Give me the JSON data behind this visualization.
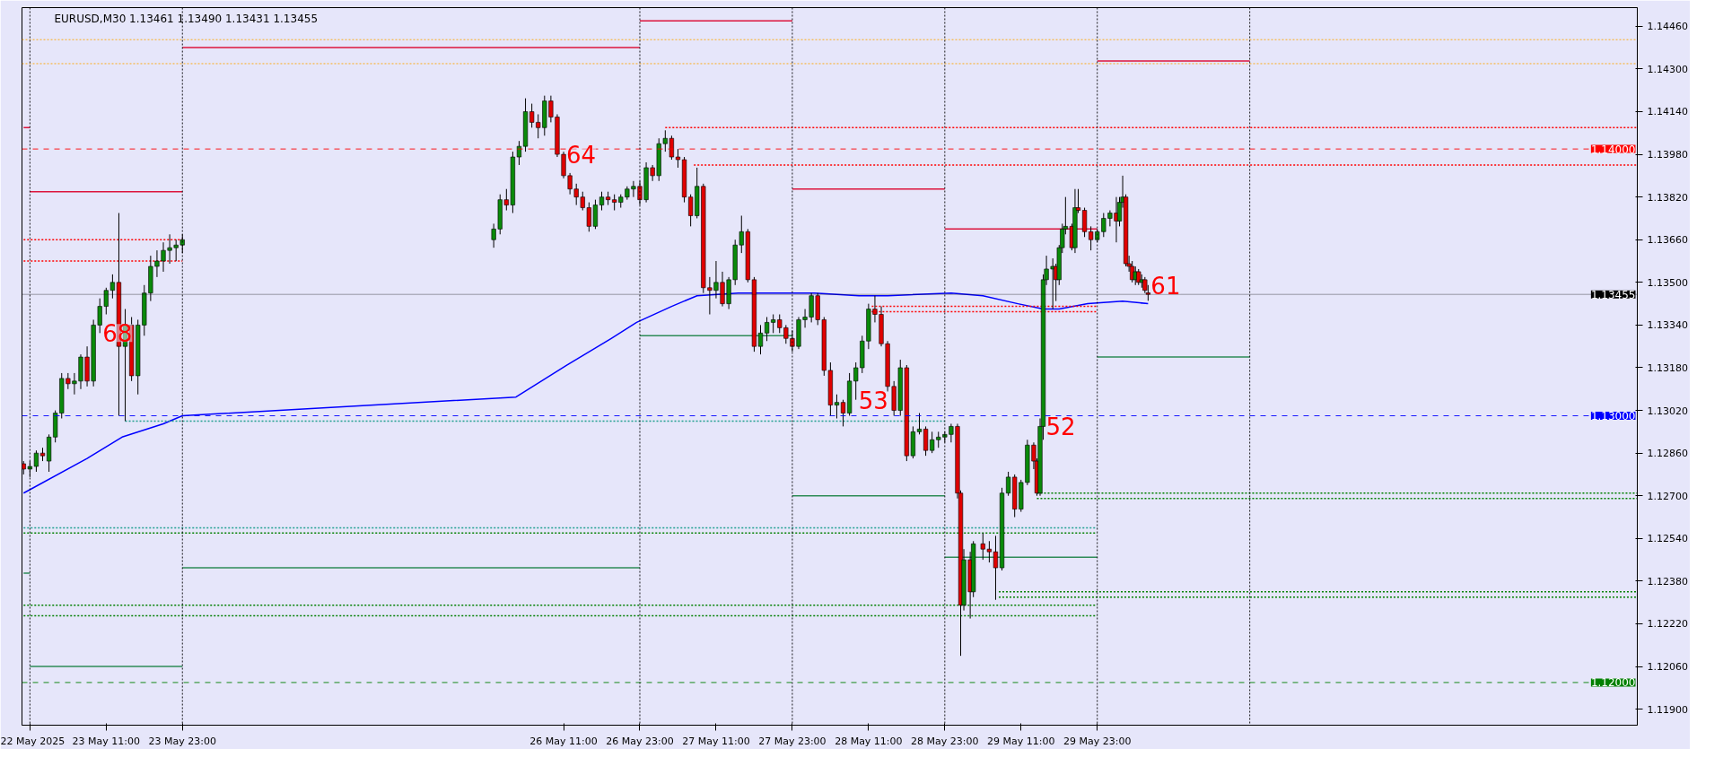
{
  "chart_data": {
    "type": "candlestick",
    "title": "EURUSD,M30  1.13461 1.13490 1.13431 1.13455",
    "xlim": [
      "2025-05-22T21:45",
      "2025-06-02T12:00"
    ],
    "ylim": [
      1.1184,
      1.1453
    ],
    "xticks": [
      {
        "value": "2025-05-22T23:00",
        "label": "22 May 2025"
      },
      {
        "value": "2025-05-23T11:00",
        "label": "23 May 11:00"
      },
      {
        "value": "2025-05-23T23:00",
        "label": "23 May 23:00"
      },
      {
        "value": "2025-05-26T11:00",
        "label": "26 May 11:00"
      },
      {
        "value": "2025-05-26T23:00",
        "label": "26 May 23:00"
      },
      {
        "value": "2025-05-27T11:00",
        "label": "27 May 11:00"
      },
      {
        "value": "2025-05-27T23:00",
        "label": "27 May 23:00"
      },
      {
        "value": "2025-05-28T11:00",
        "label": "28 May 11:00"
      },
      {
        "value": "2025-05-28T23:00",
        "label": "28 May 23:00"
      },
      {
        "value": "2025-05-29T11:00",
        "label": "29 May 11:00"
      },
      {
        "value": "2025-05-29T23:00",
        "label": "29 May 23:00"
      }
    ],
    "yticks": [
      {
        "value": 1.119,
        "label": "1.11900"
      },
      {
        "value": 1.1206,
        "label": "1.12060"
      },
      {
        "value": 1.1222,
        "label": "1.12220"
      },
      {
        "value": 1.1238,
        "label": "1.12380"
      },
      {
        "value": 1.1254,
        "label": "1.12540"
      },
      {
        "value": 1.127,
        "label": "1.12700"
      },
      {
        "value": 1.1286,
        "label": "1.12860"
      },
      {
        "value": 1.1302,
        "label": "1.13020"
      },
      {
        "value": 1.1318,
        "label": "1.13180"
      },
      {
        "value": 1.1334,
        "label": "1.13340"
      },
      {
        "value": 1.135,
        "label": "1.13500"
      },
      {
        "value": 1.1366,
        "label": "1.13660"
      },
      {
        "value": 1.1382,
        "label": "1.13820"
      },
      {
        "value": 1.1398,
        "label": "1.13980"
      },
      {
        "value": 1.1414,
        "label": "1.14140"
      },
      {
        "value": 1.143,
        "label": "1.14300"
      },
      {
        "value": 1.1446,
        "label": "1.14460"
      }
    ],
    "x": [
      "2025-05-22T22:00",
      "2025-05-22T23:00",
      "2025-05-23T00:00",
      "2025-05-23T01:00",
      "2025-05-23T02:00",
      "2025-05-23T03:00",
      "2025-05-23T04:00",
      "2025-05-23T05:00",
      "2025-05-23T06:00",
      "2025-05-23T07:00",
      "2025-05-23T08:00",
      "2025-05-23T09:00",
      "2025-05-23T10:00",
      "2025-05-23T11:00",
      "2025-05-23T12:00",
      "2025-05-23T13:00",
      "2025-05-23T14:00",
      "2025-05-23T15:00",
      "2025-05-23T16:00",
      "2025-05-23T17:00",
      "2025-05-23T18:00",
      "2025-05-23T19:00",
      "2025-05-23T20:00",
      "2025-05-23T21:00",
      "2025-05-23T22:00",
      "2025-05-23T23:00",
      "2025-05-26T00:00",
      "2025-05-26T01:00",
      "2025-05-26T02:00",
      "2025-05-26T03:00",
      "2025-05-26T04:00",
      "2025-05-26T05:00",
      "2025-05-26T06:00",
      "2025-05-26T07:00",
      "2025-05-26T08:00",
      "2025-05-26T09:00",
      "2025-05-26T10:00",
      "2025-05-26T11:00",
      "2025-05-26T12:00",
      "2025-05-26T13:00",
      "2025-05-26T14:00",
      "2025-05-26T15:00",
      "2025-05-26T16:00",
      "2025-05-26T17:00",
      "2025-05-26T18:00",
      "2025-05-26T19:00",
      "2025-05-26T20:00",
      "2025-05-26T21:00",
      "2025-05-26T22:00",
      "2025-05-26T23:00",
      "2025-05-27T00:00",
      "2025-05-27T01:00",
      "2025-05-27T02:00",
      "2025-05-27T03:00",
      "2025-05-27T04:00",
      "2025-05-27T05:00",
      "2025-05-27T06:00",
      "2025-05-27T07:00",
      "2025-05-27T08:00",
      "2025-05-27T09:00",
      "2025-05-27T10:00",
      "2025-05-27T11:00",
      "2025-05-27T12:00",
      "2025-05-27T13:00",
      "2025-05-27T14:00",
      "2025-05-27T15:00",
      "2025-05-27T16:00",
      "2025-05-27T17:00",
      "2025-05-27T18:00",
      "2025-05-27T19:00",
      "2025-05-27T20:00",
      "2025-05-27T21:00",
      "2025-05-27T22:00",
      "2025-05-27T23:00",
      "2025-05-28T00:00",
      "2025-05-28T01:00",
      "2025-05-28T02:00",
      "2025-05-28T03:00",
      "2025-05-28T04:00",
      "2025-05-28T05:00",
      "2025-05-28T06:00",
      "2025-05-28T07:00",
      "2025-05-28T08:00",
      "2025-05-28T09:00",
      "2025-05-28T10:00",
      "2025-05-28T11:00",
      "2025-05-28T12:00",
      "2025-05-28T13:00",
      "2025-05-28T14:00",
      "2025-05-28T15:00",
      "2025-05-28T16:00",
      "2025-05-28T17:00",
      "2025-05-28T18:00",
      "2025-05-28T19:00",
      "2025-05-28T20:00",
      "2025-05-28T21:00",
      "2025-05-28T22:00",
      "2025-05-28T23:00",
      "2025-05-29T00:00",
      "2025-05-29T01:00",
      "2025-05-29T01:30",
      "2025-05-29T02:00",
      "2025-05-29T03:00",
      "2025-05-29T03:30",
      "2025-05-29T05:00",
      "2025-05-29T06:00",
      "2025-05-29T07:00",
      "2025-05-29T08:00",
      "2025-05-29T09:00",
      "2025-05-29T10:00",
      "2025-05-29T11:00",
      "2025-05-29T12:00",
      "2025-05-29T13:00",
      "2025-05-29T13:30",
      "2025-05-29T14:00",
      "2025-05-29T14:30",
      "2025-05-29T15:00",
      "2025-05-29T16:00",
      "2025-05-29T16:30",
      "2025-05-29T17:00",
      "2025-05-29T17:30",
      "2025-05-29T18:00",
      "2025-05-29T19:00",
      "2025-05-29T19:30",
      "2025-05-29T20:00",
      "2025-05-29T21:00",
      "2025-05-29T22:00",
      "2025-05-29T23:00",
      "2025-05-30T00:00",
      "2025-05-30T01:00",
      "2025-05-30T02:00",
      "2025-05-30T02:30",
      "2025-05-30T03:00",
      "2025-05-30T03:30",
      "2025-05-30T04:00",
      "2025-05-30T04:30",
      "2025-05-30T05:00",
      "2025-05-30T05:30",
      "2025-05-30T06:00",
      "2025-05-30T06:30",
      "2025-05-30T07:00"
    ],
    "ohlc": [
      [
        1.1282,
        1.1283,
        1.1278,
        1.128
      ],
      [
        1.128,
        1.1283,
        1.1277,
        1.1281
      ],
      [
        1.1281,
        1.1287,
        1.1279,
        1.1286
      ],
      [
        1.1286,
        1.1288,
        1.1283,
        1.1285
      ],
      [
        1.1283,
        1.1293,
        1.1279,
        1.1292
      ],
      [
        1.1292,
        1.1302,
        1.129,
        1.1301
      ],
      [
        1.1301,
        1.1316,
        1.1299,
        1.1314
      ],
      [
        1.1314,
        1.1316,
        1.131,
        1.1312
      ],
      [
        1.1312,
        1.1316,
        1.1308,
        1.1313
      ],
      [
        1.1313,
        1.1323,
        1.131,
        1.1322
      ],
      [
        1.1322,
        1.1326,
        1.1311,
        1.1313
      ],
      [
        1.1313,
        1.1336,
        1.1311,
        1.1334
      ],
      [
        1.1334,
        1.1344,
        1.1331,
        1.1341
      ],
      [
        1.1341,
        1.1348,
        1.1338,
        1.1347
      ],
      [
        1.1347,
        1.1353,
        1.1344,
        1.135
      ],
      [
        1.135,
        1.1376,
        1.13,
        1.1326
      ],
      [
        1.1326,
        1.134,
        1.1298,
        1.1334
      ],
      [
        1.1334,
        1.1337,
        1.1313,
        1.1315
      ],
      [
        1.1315,
        1.1336,
        1.1308,
        1.1334
      ],
      [
        1.1334,
        1.1349,
        1.133,
        1.1346
      ],
      [
        1.1346,
        1.136,
        1.1343,
        1.1356
      ],
      [
        1.1356,
        1.1362,
        1.1352,
        1.1358
      ],
      [
        1.1358,
        1.1365,
        1.1354,
        1.1362
      ],
      [
        1.1362,
        1.1368,
        1.1357,
        1.1363
      ],
      [
        1.1363,
        1.1366,
        1.1358,
        1.1364
      ],
      [
        1.1364,
        1.1368,
        1.1361,
        1.1366
      ],
      [
        1.1366,
        1.1372,
        1.1363,
        1.137
      ],
      [
        1.137,
        1.1383,
        1.1368,
        1.1381
      ],
      [
        1.1381,
        1.1385,
        1.1377,
        1.1379
      ],
      [
        1.1379,
        1.1399,
        1.1376,
        1.1397
      ],
      [
        1.1397,
        1.1403,
        1.1394,
        1.1401
      ],
      [
        1.1401,
        1.1419,
        1.1399,
        1.1414
      ],
      [
        1.1414,
        1.1417,
        1.1408,
        1.141
      ],
      [
        1.141,
        1.1413,
        1.1404,
        1.1408
      ],
      [
        1.1408,
        1.142,
        1.1405,
        1.1418
      ],
      [
        1.1418,
        1.142,
        1.141,
        1.1412
      ],
      [
        1.1412,
        1.1413,
        1.1397,
        1.1398
      ],
      [
        1.1398,
        1.1399,
        1.1389,
        1.139
      ],
      [
        1.139,
        1.1391,
        1.1383,
        1.1385
      ],
      [
        1.1385,
        1.1387,
        1.1379,
        1.1382
      ],
      [
        1.1382,
        1.1384,
        1.1377,
        1.1378
      ],
      [
        1.1378,
        1.138,
        1.1369,
        1.1371
      ],
      [
        1.1371,
        1.1381,
        1.137,
        1.1379
      ],
      [
        1.1379,
        1.1384,
        1.1377,
        1.1382
      ],
      [
        1.1382,
        1.1384,
        1.1379,
        1.1381
      ],
      [
        1.1381,
        1.1383,
        1.1377,
        1.138
      ],
      [
        1.138,
        1.1383,
        1.1378,
        1.1382
      ],
      [
        1.1382,
        1.1386,
        1.1381,
        1.1385
      ],
      [
        1.1385,
        1.1388,
        1.1382,
        1.1386
      ],
      [
        1.1386,
        1.1388,
        1.1379,
        1.1381
      ],
      [
        1.1381,
        1.1395,
        1.138,
        1.1393
      ],
      [
        1.1393,
        1.1394,
        1.1388,
        1.139
      ],
      [
        1.139,
        1.1404,
        1.1388,
        1.1402
      ],
      [
        1.1402,
        1.1407,
        1.1399,
        1.1404
      ],
      [
        1.1404,
        1.1405,
        1.1396,
        1.1397
      ],
      [
        1.1397,
        1.14,
        1.1393,
        1.1396
      ],
      [
        1.1396,
        1.1397,
        1.138,
        1.1382
      ],
      [
        1.1382,
        1.1383,
        1.1371,
        1.1375
      ],
      [
        1.1375,
        1.1393,
        1.1374,
        1.1386
      ],
      [
        1.1386,
        1.1387,
        1.1346,
        1.1348
      ],
      [
        1.1348,
        1.1352,
        1.1338,
        1.1347
      ],
      [
        1.1347,
        1.1358,
        1.1344,
        1.135
      ],
      [
        1.135,
        1.1354,
        1.1341,
        1.1342
      ],
      [
        1.1342,
        1.1352,
        1.134,
        1.1351
      ],
      [
        1.1351,
        1.1366,
        1.1349,
        1.1364
      ],
      [
        1.1364,
        1.1375,
        1.1361,
        1.1369
      ],
      [
        1.1369,
        1.137,
        1.135,
        1.1351
      ],
      [
        1.1351,
        1.1352,
        1.1324,
        1.1326
      ],
      [
        1.1326,
        1.1334,
        1.1323,
        1.1331
      ],
      [
        1.1331,
        1.1337,
        1.1328,
        1.1335
      ],
      [
        1.1335,
        1.1338,
        1.1331,
        1.1336
      ],
      [
        1.1336,
        1.1338,
        1.1331,
        1.1333
      ],
      [
        1.1333,
        1.1334,
        1.1327,
        1.1329
      ],
      [
        1.1329,
        1.1332,
        1.1324,
        1.1326
      ],
      [
        1.1326,
        1.1337,
        1.1325,
        1.1336
      ],
      [
        1.1336,
        1.134,
        1.1333,
        1.1337
      ],
      [
        1.1337,
        1.1346,
        1.1335,
        1.1345
      ],
      [
        1.1345,
        1.1346,
        1.1334,
        1.1336
      ],
      [
        1.1336,
        1.1337,
        1.1315,
        1.1317
      ],
      [
        1.1317,
        1.132,
        1.13,
        1.1304
      ],
      [
        1.1304,
        1.1308,
        1.1299,
        1.1305
      ],
      [
        1.1305,
        1.1306,
        1.1296,
        1.1301
      ],
      [
        1.1301,
        1.1316,
        1.13,
        1.1313
      ],
      [
        1.1313,
        1.132,
        1.1306,
        1.1318
      ],
      [
        1.1318,
        1.133,
        1.1316,
        1.1328
      ],
      [
        1.1328,
        1.1342,
        1.1325,
        1.134
      ],
      [
        1.134,
        1.1345,
        1.1335,
        1.1338
      ],
      [
        1.1338,
        1.1341,
        1.1326,
        1.1327
      ],
      [
        1.1327,
        1.1328,
        1.1309,
        1.1311
      ],
      [
        1.1311,
        1.1313,
        1.13,
        1.1302
      ],
      [
        1.1302,
        1.1321,
        1.13,
        1.1318
      ],
      [
        1.1318,
        1.1319,
        1.1283,
        1.1285
      ],
      [
        1.1285,
        1.1296,
        1.1284,
        1.1294
      ],
      [
        1.1294,
        1.1301,
        1.1293,
        1.1295
      ],
      [
        1.1295,
        1.1296,
        1.1285,
        1.1287
      ],
      [
        1.1287,
        1.1294,
        1.1286,
        1.1291
      ],
      [
        1.1291,
        1.1294,
        1.1288,
        1.1292
      ],
      [
        1.1292,
        1.1294,
        1.129,
        1.1293
      ],
      [
        1.1293,
        1.1297,
        1.129,
        1.1296
      ],
      [
        1.1296,
        1.1297,
        1.1269,
        1.1271
      ],
      [
        1.1271,
        1.1272,
        1.121,
        1.1229
      ],
      [
        1.1229,
        1.125,
        1.1227,
        1.1246
      ],
      [
        1.1246,
        1.1249,
        1.1224,
        1.1234
      ],
      [
        1.1234,
        1.1253,
        1.1232,
        1.1252
      ],
      [
        1.1252,
        1.1256,
        1.1246,
        1.125
      ],
      [
        1.125,
        1.1253,
        1.1245,
        1.1249
      ],
      [
        1.1249,
        1.1255,
        1.1231,
        1.1243
      ],
      [
        1.1243,
        1.1273,
        1.1242,
        1.1271
      ],
      [
        1.1271,
        1.1279,
        1.127,
        1.1277
      ],
      [
        1.1277,
        1.1278,
        1.1262,
        1.1265
      ],
      [
        1.1265,
        1.1276,
        1.1264,
        1.1275
      ],
      [
        1.1275,
        1.1291,
        1.1274,
        1.1289
      ],
      [
        1.1289,
        1.129,
        1.128,
        1.1283
      ],
      [
        1.1283,
        1.1284,
        1.127,
        1.1271
      ],
      [
        1.1271,
        1.1299,
        1.127,
        1.1296
      ],
      [
        1.1296,
        1.1353,
        1.1291,
        1.1351
      ],
      [
        1.1351,
        1.136,
        1.1349,
        1.1355
      ],
      [
        1.1355,
        1.1359,
        1.134,
        1.1356
      ],
      [
        1.1356,
        1.1357,
        1.1343,
        1.1351
      ],
      [
        1.1351,
        1.1364,
        1.1349,
        1.1363
      ],
      [
        1.1363,
        1.1372,
        1.1361,
        1.137
      ],
      [
        1.137,
        1.1382,
        1.1368,
        1.1371
      ],
      [
        1.1371,
        1.1372,
        1.1362,
        1.1363
      ],
      [
        1.1363,
        1.1385,
        1.1361,
        1.1378
      ],
      [
        1.1378,
        1.1385,
        1.1376,
        1.1377
      ],
      [
        1.1377,
        1.1378,
        1.1367,
        1.1369
      ],
      [
        1.1369,
        1.1371,
        1.1362,
        1.1366
      ],
      [
        1.1366,
        1.137,
        1.1365,
        1.1369
      ],
      [
        1.1369,
        1.1376,
        1.1367,
        1.1374
      ],
      [
        1.1374,
        1.1377,
        1.1371,
        1.1376
      ],
      [
        1.1376,
        1.1382,
        1.1365,
        1.1373
      ],
      [
        1.1373,
        1.1382,
        1.1371,
        1.138
      ],
      [
        1.138,
        1.139,
        1.1378,
        1.1382
      ],
      [
        1.1382,
        1.1383,
        1.1356,
        1.1357
      ],
      [
        1.1357,
        1.136,
        1.1354,
        1.1356
      ],
      [
        1.1356,
        1.1358,
        1.135,
        1.1351
      ],
      [
        1.1351,
        1.1356,
        1.1349,
        1.1354
      ],
      [
        1.1354,
        1.1355,
        1.1349,
        1.135
      ],
      [
        1.135,
        1.1353,
        1.1348,
        1.1351
      ],
      [
        1.1351,
        1.1352,
        1.1346,
        1.1347
      ],
      [
        1.13461,
        1.1349,
        1.13431,
        1.13455
      ]
    ],
    "colors": [
      "#e00000",
      "#0a8a0a",
      "#0a8a0a",
      "#e00000",
      "#0a8a0a",
      "#0a8a0a",
      "#0a8a0a",
      "#e00000",
      "#0a8a0a",
      "#0a8a0a",
      "#e00000",
      "#0a8a0a",
      "#0a8a0a",
      "#0a8a0a",
      "#0a8a0a",
      "#e00000",
      "#0a8a0a",
      "#e00000",
      "#0a8a0a",
      "#0a8a0a",
      "#0a8a0a",
      "#0a8a0a",
      "#0a8a0a",
      "#0a8a0a",
      "#0a8a0a",
      "#0a8a0a",
      "#0a8a0a",
      "#0a8a0a",
      "#e00000",
      "#0a8a0a",
      "#0a8a0a",
      "#0a8a0a",
      "#e00000",
      "#e00000",
      "#0a8a0a",
      "#e00000",
      "#e00000",
      "#e00000",
      "#e00000",
      "#e00000",
      "#e00000",
      "#e00000",
      "#0a8a0a",
      "#0a8a0a",
      "#e00000",
      "#e00000",
      "#0a8a0a",
      "#0a8a0a",
      "#0a8a0a",
      "#e00000",
      "#0a8a0a",
      "#e00000",
      "#0a8a0a",
      "#0a8a0a",
      "#e00000",
      "#e00000",
      "#e00000",
      "#e00000",
      "#0a8a0a",
      "#e00000",
      "#e00000",
      "#0a8a0a",
      "#e00000",
      "#0a8a0a",
      "#0a8a0a",
      "#0a8a0a",
      "#e00000",
      "#e00000",
      "#0a8a0a",
      "#0a8a0a",
      "#0a8a0a",
      "#e00000",
      "#e00000",
      "#e00000",
      "#0a8a0a",
      "#0a8a0a",
      "#0a8a0a",
      "#e00000",
      "#e00000",
      "#e00000",
      "#0a8a0a",
      "#e00000",
      "#0a8a0a",
      "#0a8a0a",
      "#0a8a0a",
      "#0a8a0a",
      "#e00000",
      "#e00000",
      "#e00000",
      "#e00000",
      "#0a8a0a",
      "#e00000",
      "#0a8a0a",
      "#0a8a0a",
      "#e00000",
      "#0a8a0a",
      "#0a8a0a",
      "#0a8a0a",
      "#0a8a0a",
      "#e00000",
      "#e00000",
      "#0a8a0a",
      "#e00000",
      "#0a8a0a",
      "#e00000",
      "#e00000",
      "#e00000",
      "#0a8a0a",
      "#0a8a0a",
      "#e00000",
      "#0a8a0a",
      "#0a8a0a",
      "#e00000",
      "#e00000",
      "#0a8a0a",
      "#0a8a0a",
      "#0a8a0a",
      "#0a8a0a",
      "#e00000",
      "#0a8a0a",
      "#0a8a0a",
      "#0a8a0a",
      "#e00000",
      "#0a8a0a",
      "#e00000",
      "#e00000",
      "#e00000",
      "#0a8a0a",
      "#0a8a0a",
      "#0a8a0a",
      "#e00000",
      "#0a8a0a",
      "#0a8a0a",
      "#e00000",
      "#e00000",
      "#e00000",
      "#0a8a0a",
      "#e00000",
      "#0a8a0a",
      "#e00000",
      "#e00000"
    ],
    "series": [
      {
        "type": "line",
        "color": "#0000ff",
        "x": [
          "2025-05-22T22:00",
          "2025-05-23T08:00",
          "2025-05-23T13:30",
          "2025-05-23T20:00",
          "2025-05-23T23:00",
          "2025-05-26T03:30",
          "2025-05-26T11:30",
          "2025-05-26T18:30",
          "2025-05-26T22:30",
          "2025-05-27T04:00",
          "2025-05-27T08:00",
          "2025-05-27T14:30",
          "2025-05-27T23:00",
          "2025-05-28T02:30",
          "2025-05-28T09:30",
          "2025-05-28T14:00",
          "2025-05-29T00:00",
          "2025-05-29T05:00",
          "2025-05-29T10:30",
          "2025-05-29T14:30",
          "2025-05-29T17:00",
          "2025-05-29T21:30",
          "2025-05-30T03:00",
          "2025-05-30T07:00"
        ],
        "values": [
          1.1271,
          1.1284,
          1.1292,
          1.1297,
          1.13,
          1.1307,
          1.1319,
          1.1329,
          1.1335,
          1.1341,
          1.1345,
          1.1346,
          1.1346,
          1.1346,
          1.1345,
          1.1345,
          1.1346,
          1.1345,
          1.1342,
          1.134,
          1.134,
          1.1342,
          1.1343,
          1.1342
        ]
      },
      {
        "type": "line",
        "color": "#dc143c",
        "line_style": "solid",
        "x": [
          "2025-05-22T22:00",
          "2025-05-22T23:00"
        ],
        "values": [
          1.1408,
          1.1408
        ]
      },
      {
        "type": "line",
        "color": "#dc143c",
        "line_style": "solid",
        "x": [
          "2025-05-22T23:00",
          "2025-05-23T23:00"
        ],
        "values": [
          1.1384,
          1.1384
        ]
      },
      {
        "type": "line",
        "color": "#dc143c",
        "line_style": "solid",
        "x": [
          "2025-05-23T23:00",
          "2025-05-26T23:00"
        ],
        "values": [
          1.1438,
          1.1438
        ]
      },
      {
        "type": "line",
        "color": "#dc143c",
        "line_style": "solid",
        "x": [
          "2025-05-26T23:00",
          "2025-05-27T23:00"
        ],
        "values": [
          1.1448,
          1.1448
        ]
      },
      {
        "type": "line",
        "color": "#dc143c",
        "line_style": "solid",
        "x": [
          "2025-05-27T23:00",
          "2025-05-28T23:00"
        ],
        "values": [
          1.1385,
          1.1385
        ]
      },
      {
        "type": "line",
        "color": "#dc143c",
        "line_style": "solid",
        "x": [
          "2025-05-28T23:00",
          "2025-05-29T23:00"
        ],
        "values": [
          1.137,
          1.137
        ]
      },
      {
        "type": "line",
        "color": "#dc143c",
        "line_style": "solid",
        "x": [
          "2025-05-29T23:00",
          "2025-05-30T23:00"
        ],
        "values": [
          1.1433,
          1.1433
        ]
      },
      {
        "type": "line",
        "color": "#2e8b57",
        "line_style": "solid",
        "x": [
          "2025-05-22T22:00",
          "2025-05-22T23:00"
        ],
        "values": [
          1.1241,
          1.1241
        ]
      },
      {
        "type": "line",
        "color": "#2e8b57",
        "line_style": "solid",
        "x": [
          "2025-05-22T23:00",
          "2025-05-23T23:00"
        ],
        "values": [
          1.1206,
          1.1206
        ]
      },
      {
        "type": "line",
        "color": "#2e8b57",
        "line_style": "solid",
        "x": [
          "2025-05-23T23:00",
          "2025-05-26T23:00"
        ],
        "values": [
          1.1243,
          1.1243
        ]
      },
      {
        "type": "line",
        "color": "#2e8b57",
        "line_style": "solid",
        "x": [
          "2025-05-26T23:00",
          "2025-05-27T23:00"
        ],
        "values": [
          1.133,
          1.133
        ]
      },
      {
        "type": "line",
        "color": "#2e8b57",
        "line_style": "solid",
        "x": [
          "2025-05-27T23:00",
          "2025-05-28T23:00"
        ],
        "values": [
          1.127,
          1.127
        ]
      },
      {
        "type": "line",
        "color": "#2e8b57",
        "line_style": "solid",
        "x": [
          "2025-05-28T23:00",
          "2025-05-29T23:00"
        ],
        "values": [
          1.1247,
          1.1247
        ]
      },
      {
        "type": "line",
        "color": "#2e8b57",
        "line_style": "solid",
        "x": [
          "2025-05-29T23:00",
          "2025-05-30T23:00"
        ],
        "values": [
          1.1322,
          1.1322
        ]
      },
      {
        "type": "line",
        "color": "#ff0000",
        "line_style": "dotted",
        "x": [
          "2025-05-22T22:00",
          "2025-05-23T23:00"
        ],
        "values": [
          1.1366,
          1.1366
        ]
      },
      {
        "type": "line",
        "color": "#ff0000",
        "line_style": "dotted",
        "x": [
          "2025-05-22T22:00",
          "2025-05-23T23:00"
        ],
        "values": [
          1.1358,
          1.1358
        ]
      },
      {
        "type": "line",
        "color": "#ff0000",
        "line_style": "dotted",
        "x": [
          "2025-05-27T03:00",
          "2025-06-02T12:00"
        ],
        "values": [
          1.1408,
          1.1408
        ]
      },
      {
        "type": "line",
        "color": "#ff0000",
        "line_style": "dotted",
        "x": [
          "2025-05-27T07:30",
          "2025-06-02T12:00"
        ],
        "values": [
          1.1394,
          1.1394
        ]
      },
      {
        "type": "line",
        "color": "#ff0000",
        "line_style": "dotted",
        "x": [
          "2025-05-28T11:30",
          "2025-05-29T23:00"
        ],
        "values": [
          1.1341,
          1.1341
        ]
      },
      {
        "type": "line",
        "color": "#ff0000",
        "line_style": "dotted",
        "x": [
          "2025-05-28T11:30",
          "2025-05-29T23:00"
        ],
        "values": [
          1.1339,
          1.1339
        ]
      },
      {
        "type": "line",
        "color": "#20a090",
        "line_style": "dotted",
        "x": [
          "2025-05-22T22:00",
          "2025-05-29T23:00"
        ],
        "values": [
          1.1258,
          1.1258
        ]
      },
      {
        "type": "line",
        "color": "#008000",
        "line_style": "dotted",
        "x": [
          "2025-05-22T22:00",
          "2025-05-29T23:00"
        ],
        "values": [
          1.1256,
          1.1256
        ]
      },
      {
        "type": "line",
        "color": "#20a090",
        "line_style": "dotted",
        "x": [
          "2025-05-23T14:00",
          "2025-05-28T23:00"
        ],
        "values": [
          1.1298,
          1.1298
        ]
      },
      {
        "type": "line",
        "color": "#008000",
        "line_style": "dotted",
        "x": [
          "2025-05-22T22:00",
          "2025-05-29T23:00"
        ],
        "values": [
          1.1229,
          1.1229
        ]
      },
      {
        "type": "line",
        "color": "#008000",
        "line_style": "dotted",
        "x": [
          "2025-05-22T22:00",
          "2025-05-29T23:00"
        ],
        "values": [
          1.1225,
          1.1225
        ]
      },
      {
        "type": "line",
        "color": "#008000",
        "line_style": "dotted",
        "x": [
          "2025-05-29T13:30",
          "2025-06-02T12:00"
        ],
        "values": [
          1.1271,
          1.1271
        ]
      },
      {
        "type": "line",
        "color": "#008000",
        "line_style": "dotted",
        "x": [
          "2025-05-29T13:30",
          "2025-06-02T12:00"
        ],
        "values": [
          1.1269,
          1.1269
        ]
      },
      {
        "type": "line",
        "color": "#008000",
        "line_style": "dotted",
        "x": [
          "2025-05-29T07:30",
          "2025-06-02T12:00"
        ],
        "values": [
          1.1234,
          1.1234
        ]
      },
      {
        "type": "line",
        "color": "#008000",
        "line_style": "dotted",
        "x": [
          "2025-05-29T07:30",
          "2025-06-02T12:00"
        ],
        "values": [
          1.1232,
          1.1232
        ]
      }
    ],
    "ref_lines": [
      {
        "axis": "y",
        "value": 1.1441,
        "color": "#ffa500",
        "line_style": "dotted"
      },
      {
        "axis": "y",
        "value": 1.1432,
        "color": "#ffa500",
        "line_style": "dotted"
      },
      {
        "axis": "y",
        "value": 1.14,
        "label": "1.14000",
        "color": "#ff0000",
        "line_style": "dashed"
      },
      {
        "axis": "y",
        "value": 1.13455,
        "label": "1.13455",
        "color": "#000000",
        "line_style": "solid"
      },
      {
        "axis": "y",
        "value": 1.13,
        "label": "1.13000",
        "color": "#0000ff",
        "line_style": "dashed"
      },
      {
        "axis": "y",
        "value": 1.12,
        "label": "1.12000",
        "color": "#008000",
        "line_style": "dashed"
      },
      {
        "axis": "x",
        "value": "2025-05-22T23:00",
        "color": "#000000",
        "line_style": "dotted"
      },
      {
        "axis": "x",
        "value": "2025-05-23T23:00",
        "color": "#000000",
        "line_style": "dotted"
      },
      {
        "axis": "x",
        "value": "2025-05-26T23:00",
        "color": "#000000",
        "line_style": "dotted"
      },
      {
        "axis": "x",
        "value": "2025-05-27T23:00",
        "color": "#000000",
        "line_style": "dotted"
      },
      {
        "axis": "x",
        "value": "2025-05-28T23:00",
        "color": "#000000",
        "line_style": "dotted"
      },
      {
        "axis": "x",
        "value": "2025-05-29T23:00",
        "color": "#000000",
        "line_style": "dotted"
      },
      {
        "axis": "x",
        "value": "2025-05-30T23:00",
        "color": "#000000",
        "line_style": "dotted"
      }
    ],
    "annotations": [
      {
        "text": "68",
        "x": "2025-05-23T10:00",
        "y": 1.1331
      },
      {
        "text": "64",
        "x": "2025-05-26T11:00",
        "y": 1.1398
      },
      {
        "text": "53",
        "x": "2025-05-28T09:00",
        "y": 1.1306
      },
      {
        "text": "52",
        "x": "2025-05-29T14:30",
        "y": 1.1296
      },
      {
        "text": "61",
        "x": "2025-05-30T07:00",
        "y": 1.1349
      }
    ]
  }
}
